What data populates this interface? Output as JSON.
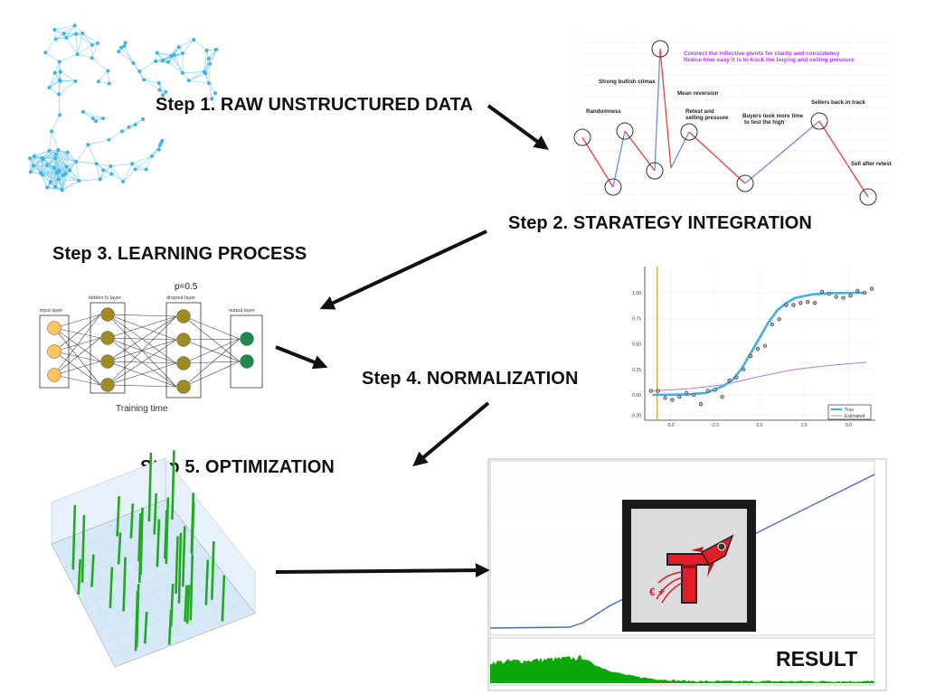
{
  "steps": [
    {
      "label": "Step 1. RAW UNSTRUCTURED DATA"
    },
    {
      "label": "Step 2. STARATEGY INTEGRATION"
    },
    {
      "label": "Step 3. LEARNING PROCESS"
    },
    {
      "label": "Step 4. NORMALIZATION"
    },
    {
      "label": "Step 5. OPTIMIZATION"
    }
  ],
  "result_label": "RESULT",
  "strategy_chart": {
    "header_lines": [
      "Connect the inflective pivots for clarity and consistency",
      "Notice how easy it is to track the buying and selling pressure"
    ],
    "annotations": [
      "Strong bullish climax",
      "Mean reversion",
      "Randomness",
      "Retest and",
      "selling pressure",
      "Buyers took more time",
      "to test the high",
      "Sellers back in track",
      "Sell after retest"
    ],
    "colors": {
      "up": "#6b8cf0",
      "down": "#e8403f",
      "header": "#b23cf0"
    }
  },
  "neural_network": {
    "dropout": "p=0.5",
    "layers": [
      "input layer",
      "hidden fc layer",
      "dropout layer",
      "output layer"
    ],
    "neurons": [
      3,
      4,
      4,
      2
    ],
    "caption": "Training time",
    "colors": {
      "input": "#fdc45e",
      "hidden": "#a08a22",
      "output": "#1f8a4c"
    }
  },
  "chart_data": {
    "type": "line",
    "xlim": [
      -6.3,
      6.5
    ],
    "ylim": [
      -0.25,
      1.2
    ],
    "x_ticks": [
      "-5.0",
      "-2.5",
      "0.0",
      "2.5",
      "5.0"
    ],
    "x_tick_values": [
      -5,
      -2.5,
      0,
      2.5,
      5
    ],
    "y_ticks": [
      "1.00",
      "0.75",
      "0.50",
      "0.25",
      "0.00",
      "-0.20"
    ],
    "y_tick_values": [
      1,
      0.75,
      0.5,
      0.25,
      0,
      -0.2
    ],
    "grid": true,
    "legend_position": "bottom-right",
    "vertical_line_x": -5.75,
    "series": [
      {
        "name": "True",
        "color": "#3fb0e4",
        "x": [
          -6,
          -5,
          -4,
          -3,
          -2,
          -1.5,
          -1,
          -0.5,
          0,
          0.5,
          1,
          1.5,
          2,
          3,
          4,
          5,
          6
        ],
        "y": [
          0.0,
          0.002,
          0.005,
          0.02,
          0.09,
          0.15,
          0.26,
          0.41,
          0.56,
          0.71,
          0.83,
          0.9,
          0.95,
          0.985,
          0.996,
          0.999,
          1.0
        ]
      },
      {
        "name": "Estimated",
        "color": "#a97fe0",
        "x": [
          -6,
          -4,
          -2,
          0,
          2,
          4,
          6
        ],
        "y": [
          0.04,
          0.06,
          0.1,
          0.18,
          0.25,
          0.29,
          0.32
        ]
      }
    ],
    "points": {
      "x": [
        -6.1,
        -5.7,
        -5.3,
        -4.9,
        -4.5,
        -4.1,
        -3.7,
        -3.3,
        -2.9,
        -2.5,
        -2.1,
        -1.7,
        -1.3,
        -0.9,
        -0.5,
        -0.1,
        0.3,
        0.7,
        1.1,
        1.5,
        1.9,
        2.3,
        2.7,
        3.1,
        3.5,
        3.9,
        4.3,
        4.7,
        5.1,
        5.5,
        5.9,
        6.3
      ],
      "y": [
        0.04,
        0.04,
        -0.03,
        -0.05,
        -0.02,
        0.02,
        0.0,
        -0.09,
        0.04,
        0.05,
        -0.02,
        0.14,
        0.17,
        0.25,
        0.38,
        0.45,
        0.48,
        0.69,
        0.74,
        0.88,
        0.88,
        0.9,
        0.91,
        0.9,
        1.01,
        0.99,
        0.96,
        0.95,
        0.97,
        1.02,
        1.0,
        1.04
      ]
    }
  },
  "logo": {
    "letter": "T",
    "color": "#e01e2a"
  }
}
